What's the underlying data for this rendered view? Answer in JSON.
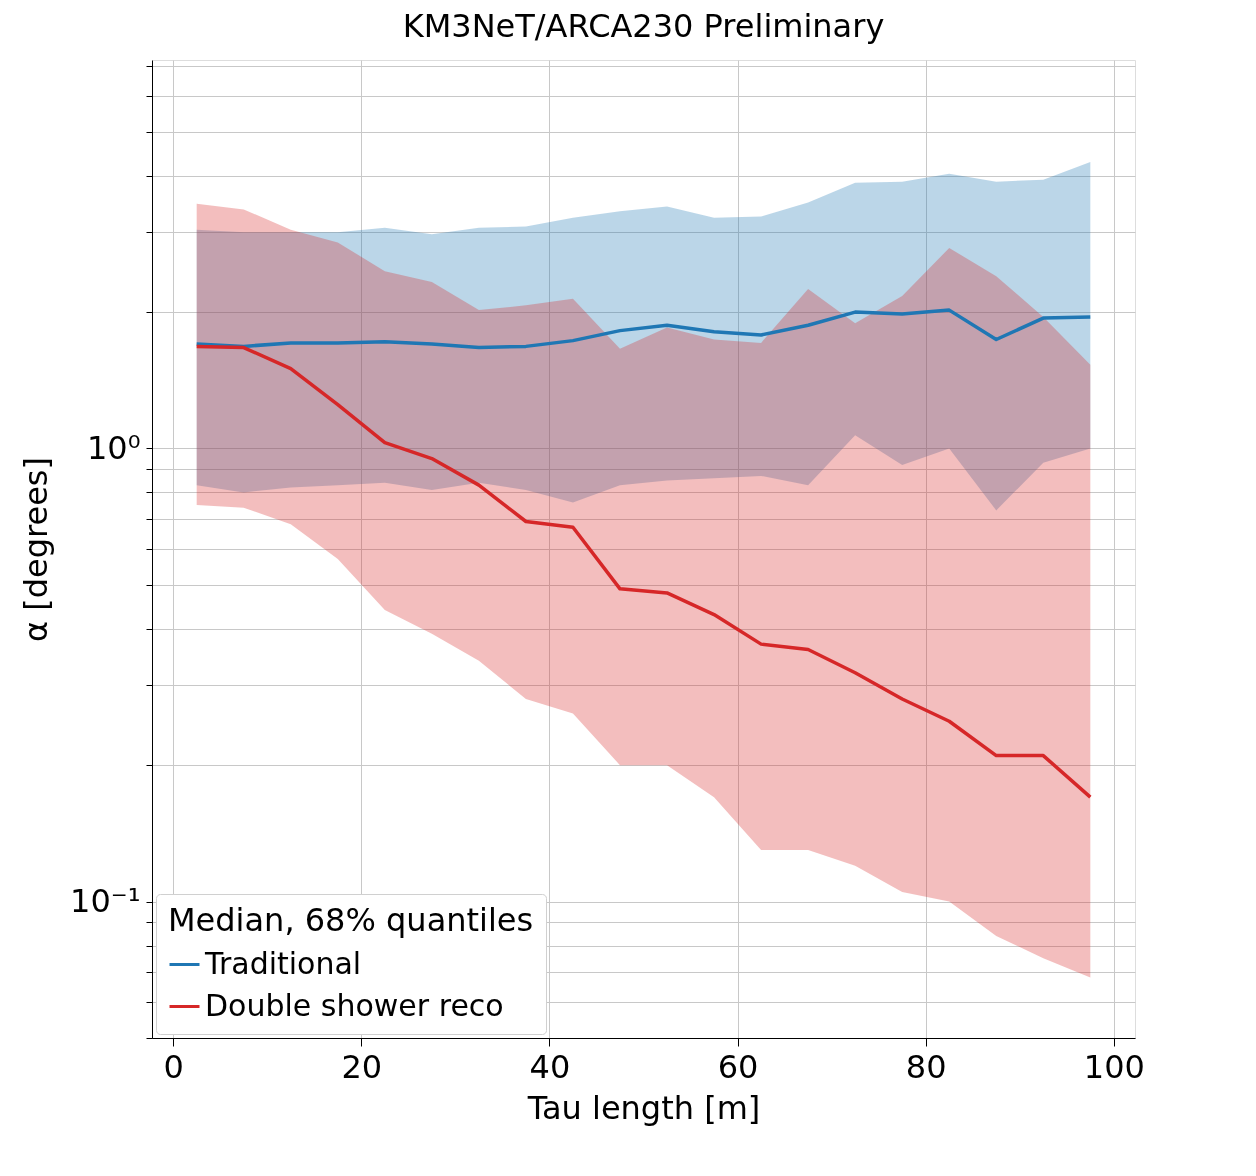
{
  "chart_data": {
    "type": "line",
    "title": "KM3NeT/ARCA230 Preliminary",
    "xlabel": "Tau length [m]",
    "ylabel": "α [degrees]",
    "legend_title": "Median, 68% quantiles",
    "x": [
      2.5,
      7.5,
      12.5,
      17.5,
      22.5,
      27.5,
      32.5,
      37.5,
      42.5,
      47.5,
      52.5,
      57.5,
      62.5,
      67.5,
      72.5,
      77.5,
      82.5,
      87.5,
      92.5,
      97.5
    ],
    "series": [
      {
        "name": "Traditional",
        "color": "#1f77b4",
        "values": [
          1.7,
          1.68,
          1.71,
          1.71,
          1.72,
          1.7,
          1.67,
          1.68,
          1.73,
          1.82,
          1.87,
          1.81,
          1.78,
          1.87,
          2.0,
          1.98,
          2.02,
          1.74,
          1.94,
          1.95
        ],
        "lower": [
          0.83,
          0.8,
          0.82,
          0.83,
          0.84,
          0.81,
          0.84,
          0.81,
          0.76,
          0.83,
          0.85,
          0.86,
          0.87,
          0.83,
          1.07,
          0.92,
          1.0,
          0.73,
          0.93,
          1.0
        ],
        "upper": [
          3.04,
          3.0,
          3.0,
          3.0,
          3.07,
          2.97,
          3.07,
          3.09,
          3.23,
          3.34,
          3.42,
          3.23,
          3.25,
          3.49,
          3.86,
          3.88,
          4.04,
          3.88,
          3.92,
          4.29
        ]
      },
      {
        "name": "Double shower reco",
        "color": "#d62728",
        "values": [
          1.68,
          1.67,
          1.5,
          1.25,
          1.03,
          0.95,
          0.83,
          0.69,
          0.67,
          0.49,
          0.48,
          0.43,
          0.37,
          0.36,
          0.32,
          0.28,
          0.25,
          0.21,
          0.21,
          0.17
        ],
        "lower": [
          0.75,
          0.74,
          0.68,
          0.57,
          0.44,
          0.39,
          0.34,
          0.28,
          0.26,
          0.2,
          0.2,
          0.17,
          0.13,
          0.13,
          0.12,
          0.105,
          0.1,
          0.084,
          0.075,
          0.068
        ],
        "upper": [
          3.47,
          3.37,
          3.04,
          2.85,
          2.46,
          2.33,
          2.02,
          2.07,
          2.14,
          1.66,
          1.85,
          1.74,
          1.71,
          2.25,
          1.89,
          2.17,
          2.77,
          2.4,
          1.95,
          1.53
        ]
      }
    ],
    "xlim": [
      -2.25,
      102.25
    ],
    "xticks": [
      0,
      20,
      40,
      60,
      80,
      100
    ],
    "ylim": [
      0.05,
      7.2
    ],
    "log": true,
    "yticks": [
      {
        "value": 0.05,
        "label": null
      },
      {
        "value": 0.06,
        "label": null
      },
      {
        "value": 0.07,
        "label": null
      },
      {
        "value": 0.08,
        "label": null
      },
      {
        "value": 0.09,
        "label": null
      },
      {
        "value": 0.1,
        "label": "10⁻¹"
      },
      {
        "value": 0.2,
        "label": null
      },
      {
        "value": 0.3,
        "label": null
      },
      {
        "value": 0.4,
        "label": null
      },
      {
        "value": 0.5,
        "label": null
      },
      {
        "value": 0.6,
        "label": null
      },
      {
        "value": 0.7,
        "label": null
      },
      {
        "value": 0.8,
        "label": null
      },
      {
        "value": 0.9,
        "label": null
      },
      {
        "value": 1,
        "label": "10⁰"
      },
      {
        "value": 2,
        "label": null
      },
      {
        "value": 3,
        "label": null
      },
      {
        "value": 4,
        "label": null
      },
      {
        "value": 5,
        "label": null
      },
      {
        "value": 6,
        "label": null
      },
      {
        "value": 7,
        "label": null
      }
    ],
    "grid": true,
    "legend": "bottom left",
    "line_style": "solid",
    "marker": "none"
  }
}
